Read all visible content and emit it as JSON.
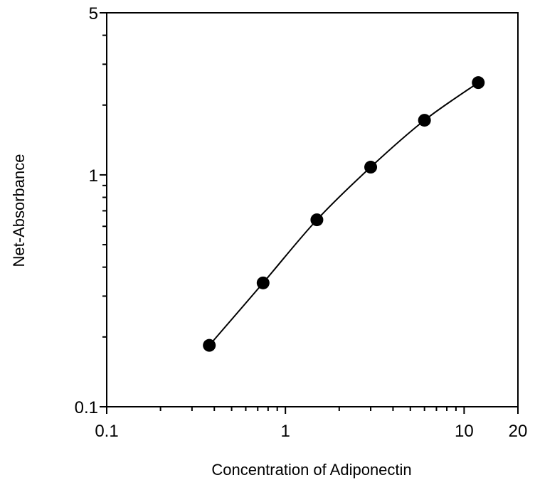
{
  "chart_data": {
    "type": "scatter",
    "title": "",
    "xlabel": "Concentration of Adiponectin",
    "ylabel": "Net-Absorbance",
    "xscale": "log",
    "yscale": "log",
    "xlim": [
      0.1,
      20
    ],
    "ylim": [
      0.1,
      5
    ],
    "x_tick_labels": [
      "0.1",
      "1",
      "10",
      "20"
    ],
    "y_tick_labels": [
      "0.1",
      "1",
      "5"
    ],
    "grid": false,
    "legend": "none",
    "series": [
      {
        "x": [
          0.375,
          0.75,
          1.5,
          3,
          6,
          12
        ],
        "y": [
          0.184,
          0.342,
          0.64,
          1.08,
          1.72,
          2.5
        ],
        "marker": "filled-circle",
        "line": "smooth",
        "color": "#000000"
      }
    ]
  }
}
